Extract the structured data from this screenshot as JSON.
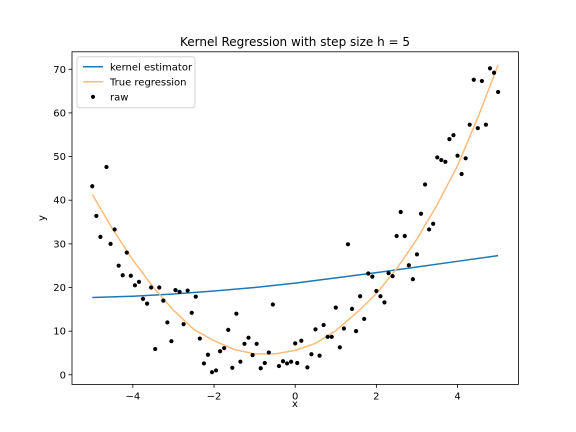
{
  "chart_data": {
    "type": "scatter",
    "title": "Kernel Regression with step size h = 5",
    "xlabel": "x",
    "ylabel": "y",
    "xlim": [
      -5.5,
      5.5
    ],
    "ylim": [
      -2.2,
      74
    ],
    "x_ticks": [
      -4,
      -2,
      0,
      2,
      4
    ],
    "y_ticks": [
      0,
      10,
      20,
      30,
      40,
      50,
      60,
      70
    ],
    "legend_position": "top-left",
    "series": [
      {
        "name": "kernel estimator",
        "kind": "line",
        "color": "#1f77b4",
        "x": [
          -5,
          -4,
          -3,
          -2,
          -1,
          0,
          1,
          2,
          3,
          4,
          5
        ],
        "y": [
          17.7,
          18.0,
          18.5,
          19.2,
          20.0,
          21.0,
          22.2,
          23.4,
          24.7,
          26.0,
          27.3
        ]
      },
      {
        "name": "True regression",
        "kind": "line",
        "color": "#ffbb78",
        "x": [
          -5,
          -4.5,
          -4,
          -3.5,
          -3,
          -2.5,
          -2,
          -1.5,
          -1,
          -0.5,
          0,
          0.5,
          1,
          1.5,
          2,
          2.5,
          3,
          3.5,
          4,
          4.5,
          5
        ],
        "y": [
          41.3,
          33.4,
          26.3,
          20.1,
          14.8,
          10.4,
          7.8,
          5.8,
          4.8,
          4.8,
          5.6,
          7.2,
          10.1,
          14.1,
          18.6,
          24.3,
          31.1,
          39.0,
          47.9,
          58.9,
          71.0
        ]
      },
      {
        "name": "raw",
        "kind": "scatter",
        "color": "#000000",
        "points": [
          [
            -5.0,
            43.2
          ],
          [
            -4.9,
            36.4
          ],
          [
            -4.8,
            31.6
          ],
          [
            -4.65,
            47.6
          ],
          [
            -4.55,
            30.0
          ],
          [
            -4.45,
            33.3
          ],
          [
            -4.35,
            25.0
          ],
          [
            -4.25,
            22.8
          ],
          [
            -4.15,
            28.0
          ],
          [
            -4.05,
            22.7
          ],
          [
            -3.95,
            20.5
          ],
          [
            -3.85,
            21.3
          ],
          [
            -3.75,
            17.4
          ],
          [
            -3.65,
            16.3
          ],
          [
            -3.55,
            20.0
          ],
          [
            -3.45,
            5.9
          ],
          [
            -3.35,
            20.0
          ],
          [
            -3.25,
            17.0
          ],
          [
            -3.15,
            12.0
          ],
          [
            -3.05,
            7.7
          ],
          [
            -2.95,
            19.4
          ],
          [
            -2.85,
            19.0
          ],
          [
            -2.75,
            11.6
          ],
          [
            -2.65,
            19.3
          ],
          [
            -2.55,
            14.2
          ],
          [
            -2.45,
            17.9
          ],
          [
            -2.35,
            8.3
          ],
          [
            -2.25,
            2.6
          ],
          [
            -2.15,
            4.6
          ],
          [
            -2.05,
            0.6
          ],
          [
            -1.95,
            1.0
          ],
          [
            -1.85,
            5.4
          ],
          [
            -1.75,
            6.1
          ],
          [
            -1.65,
            10.3
          ],
          [
            -1.55,
            1.6
          ],
          [
            -1.45,
            14.0
          ],
          [
            -1.35,
            3.0
          ],
          [
            -1.25,
            7.1
          ],
          [
            -1.15,
            8.5
          ],
          [
            -1.05,
            4.5
          ],
          [
            -0.95,
            7.1
          ],
          [
            -0.85,
            1.5
          ],
          [
            -0.75,
            2.7
          ],
          [
            -0.65,
            5.1
          ],
          [
            -0.55,
            16.1
          ],
          [
            -0.4,
            2.0
          ],
          [
            -0.3,
            3.1
          ],
          [
            -0.2,
            2.6
          ],
          [
            -0.1,
            3.0
          ],
          [
            0.0,
            7.2
          ],
          [
            0.05,
            2.7
          ],
          [
            0.15,
            7.8
          ],
          [
            0.3,
            1.7
          ],
          [
            0.4,
            4.7
          ],
          [
            0.5,
            10.4
          ],
          [
            0.6,
            4.4
          ],
          [
            0.7,
            11.4
          ],
          [
            0.8,
            8.7
          ],
          [
            0.9,
            8.7
          ],
          [
            1.0,
            15.4
          ],
          [
            1.1,
            6.3
          ],
          [
            1.2,
            10.6
          ],
          [
            1.3,
            29.9
          ],
          [
            1.4,
            15.1
          ],
          [
            1.5,
            10.0
          ],
          [
            1.6,
            18.0
          ],
          [
            1.7,
            12.8
          ],
          [
            1.8,
            23.2
          ],
          [
            1.9,
            22.5
          ],
          [
            2.0,
            19.2
          ],
          [
            2.1,
            18.0
          ],
          [
            2.2,
            16.6
          ],
          [
            2.3,
            23.3
          ],
          [
            2.4,
            22.6
          ],
          [
            2.5,
            31.8
          ],
          [
            2.6,
            37.3
          ],
          [
            2.7,
            31.8
          ],
          [
            2.8,
            25.1
          ],
          [
            2.9,
            21.9
          ],
          [
            3.0,
            27.6
          ],
          [
            3.1,
            36.9
          ],
          [
            3.2,
            43.6
          ],
          [
            3.3,
            33.3
          ],
          [
            3.4,
            34.6
          ],
          [
            3.5,
            49.8
          ],
          [
            3.6,
            49.2
          ],
          [
            3.7,
            48.8
          ],
          [
            3.8,
            54.0
          ],
          [
            3.9,
            54.9
          ],
          [
            4.0,
            50.2
          ],
          [
            4.1,
            46.0
          ],
          [
            4.2,
            49.6
          ],
          [
            4.3,
            57.3
          ],
          [
            4.4,
            67.6
          ],
          [
            4.5,
            56.5
          ],
          [
            4.6,
            67.3
          ],
          [
            4.7,
            57.3
          ],
          [
            4.8,
            70.2
          ],
          [
            4.9,
            69.2
          ],
          [
            5.0,
            64.8
          ]
        ]
      }
    ]
  }
}
